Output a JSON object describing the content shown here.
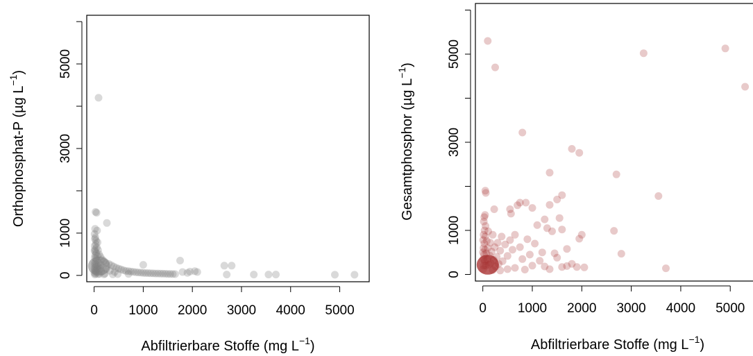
{
  "chart_data": [
    {
      "type": "scatter",
      "title": "",
      "xlabel": "Abfiltrierbare Stoffe (mg L",
      "xlabel_unit_exponent": "−1",
      "xlabel_close": ")",
      "ylabel": "Orthophosphat-P (µg L",
      "ylabel_unit_exponent": "−1",
      "ylabel_close": ")",
      "xlim": [
        -150,
        5600
      ],
      "ylim": [
        -150,
        6150
      ],
      "x_ticks": [
        0,
        1000,
        2000,
        3000,
        4000,
        5000
      ],
      "x_tick_labels": [
        "0",
        "1000",
        "2000",
        "3000",
        "4000",
        "5000"
      ],
      "y_ticks": [
        0,
        1000,
        3000,
        5000
      ],
      "y_tick_labels": [
        "0",
        "1000",
        "3000",
        "5000"
      ],
      "grid": false,
      "legend": "none",
      "point_color": "#808080",
      "point_opacity": 0.3,
      "series": [
        {
          "values": [
            [
              90,
              4200
            ],
            [
              30,
              1500
            ],
            [
              50,
              1480
            ],
            [
              20,
              1100
            ],
            [
              60,
              1060
            ],
            [
              260,
              1240
            ],
            [
              10,
              980
            ],
            [
              25,
              900
            ],
            [
              15,
              860
            ],
            [
              40,
              820
            ],
            [
              70,
              780
            ],
            [
              35,
              740
            ],
            [
              12,
              700
            ],
            [
              55,
              660
            ],
            [
              18,
              620
            ],
            [
              80,
              600
            ],
            [
              8,
              580
            ],
            [
              28,
              560
            ],
            [
              45,
              520
            ],
            [
              100,
              500
            ],
            [
              22,
              480
            ],
            [
              65,
              460
            ],
            [
              130,
              440
            ],
            [
              14,
              420
            ],
            [
              38,
              400
            ],
            [
              160,
              380
            ],
            [
              52,
              360
            ],
            [
              200,
              340
            ],
            [
              26,
              320
            ],
            [
              90,
              300
            ],
            [
              240,
              300
            ],
            [
              11,
              280
            ],
            [
              300,
              270
            ],
            [
              44,
              260
            ],
            [
              140,
              250
            ],
            [
              350,
              240
            ],
            [
              19,
              230
            ],
            [
              75,
              220
            ],
            [
              400,
              210
            ],
            [
              33,
              200
            ],
            [
              180,
              190
            ],
            [
              450,
              180
            ],
            [
              9,
              170
            ],
            [
              120,
              165
            ],
            [
              500,
              160
            ],
            [
              60,
              150
            ],
            [
              250,
              145
            ],
            [
              550,
              140
            ],
            [
              16,
              130
            ],
            [
              95,
              125
            ],
            [
              600,
              120
            ],
            [
              40,
              115
            ],
            [
              320,
              110
            ],
            [
              650,
              105
            ],
            [
              700,
              100
            ],
            [
              24,
              95
            ],
            [
              150,
              90
            ],
            [
              750,
              90
            ],
            [
              800,
              85
            ],
            [
              58,
              80
            ],
            [
              420,
              80
            ],
            [
              850,
              75
            ],
            [
              900,
              70
            ],
            [
              950,
              65
            ],
            [
              1000,
              60
            ],
            [
              1050,
              55
            ],
            [
              1100,
              55
            ],
            [
              1150,
              50
            ],
            [
              1200,
              48
            ],
            [
              1250,
              45
            ],
            [
              1300,
              45
            ],
            [
              1350,
              42
            ],
            [
              1400,
              40
            ],
            [
              1450,
              38
            ],
            [
              1500,
              36
            ],
            [
              1550,
              34
            ],
            [
              1600,
              32
            ],
            [
              1650,
              30
            ],
            [
              1000,
              250
            ],
            [
              1750,
              350
            ],
            [
              1800,
              80
            ],
            [
              1900,
              60
            ],
            [
              1950,
              90
            ],
            [
              2050,
              100
            ],
            [
              2100,
              80
            ],
            [
              2650,
              230
            ],
            [
              2800,
              230
            ],
            [
              2700,
              20
            ],
            [
              3250,
              20
            ],
            [
              3550,
              20
            ],
            [
              3700,
              20
            ],
            [
              4900,
              15
            ],
            [
              5300,
              15
            ],
            [
              30,
              40
            ],
            [
              80,
              30
            ],
            [
              200,
              25
            ],
            [
              5,
              60
            ],
            [
              15,
              20
            ],
            [
              110,
              35
            ],
            [
              220,
              40
            ],
            [
              380,
              25
            ],
            [
              480,
              30
            ],
            [
              700,
              35
            ]
          ]
        }
      ]
    },
    {
      "type": "scatter",
      "title": "",
      "xlabel": "Abfiltrierbare Stoffe (mg L",
      "xlabel_unit_exponent": "−1",
      "xlabel_close": ")",
      "ylabel": "Gesamtphosphor (µg L",
      "ylabel_unit_exponent": "−1",
      "ylabel_close": ")",
      "xlim": [
        -150,
        5600
      ],
      "ylim": [
        -150,
        6150
      ],
      "x_ticks": [
        0,
        1000,
        2000,
        3000,
        4000,
        5000
      ],
      "x_tick_labels": [
        "0",
        "1000",
        "2000",
        "3000",
        "4000",
        "5000"
      ],
      "y_ticks": [
        0,
        1000,
        3000,
        5000
      ],
      "y_tick_labels": [
        "0",
        "1000",
        "3000",
        "5000"
      ],
      "grid": false,
      "legend": "none",
      "point_color": "#a52a2a",
      "point_opacity": 0.25,
      "series": [
        {
          "values": [
            [
              100,
              5300
            ],
            [
              250,
              4700
            ],
            [
              3250,
              5020
            ],
            [
              4900,
              5130
            ],
            [
              5300,
              4260
            ],
            [
              800,
              3220
            ],
            [
              1800,
              2850
            ],
            [
              1950,
              2760
            ],
            [
              1350,
              2310
            ],
            [
              2700,
              2270
            ],
            [
              3550,
              1780
            ],
            [
              50,
              1900
            ],
            [
              60,
              1850
            ],
            [
              1600,
              1800
            ],
            [
              1500,
              1700
            ],
            [
              1350,
              1580
            ],
            [
              750,
              1630
            ],
            [
              870,
              1630
            ],
            [
              700,
              1570
            ],
            [
              1000,
              1510
            ],
            [
              230,
              1480
            ],
            [
              550,
              1480
            ],
            [
              570,
              1380
            ],
            [
              1550,
              1280
            ],
            [
              1100,
              1120
            ],
            [
              1600,
              1020
            ],
            [
              2650,
              990
            ],
            [
              1300,
              1050
            ],
            [
              1400,
              980
            ],
            [
              1950,
              810
            ],
            [
              2800,
              470
            ],
            [
              3700,
              140
            ],
            [
              1900,
              170
            ],
            [
              2050,
              160
            ],
            [
              1800,
              240
            ],
            [
              1700,
              190
            ],
            [
              1600,
              170
            ],
            [
              1450,
              480
            ],
            [
              1500,
              380
            ],
            [
              1200,
              500
            ],
            [
              1050,
              700
            ],
            [
              900,
              800
            ],
            [
              950,
              450
            ],
            [
              800,
              350
            ],
            [
              750,
              620
            ],
            [
              650,
              900
            ],
            [
              600,
              560
            ],
            [
              550,
              780
            ],
            [
              500,
              420
            ],
            [
              450,
              680
            ],
            [
              400,
              300
            ],
            [
              380,
              860
            ],
            [
              350,
              540
            ],
            [
              320,
              240
            ],
            [
              300,
              720
            ],
            [
              280,
              400
            ],
            [
              260,
              180
            ],
            [
              240,
              620
            ],
            [
              220,
              330
            ],
            [
              200,
              900
            ],
            [
              180,
              520
            ],
            [
              160,
              260
            ],
            [
              150,
              720
            ],
            [
              140,
              430
            ],
            [
              120,
              220
            ],
            [
              110,
              980
            ],
            [
              100,
              600
            ],
            [
              90,
              340
            ],
            [
              80,
              760
            ],
            [
              70,
              480
            ],
            [
              60,
              200
            ],
            [
              55,
              1100
            ],
            [
              50,
              860
            ],
            [
              45,
              560
            ],
            [
              40,
              300
            ],
            [
              35,
              1000
            ],
            [
              30,
              700
            ],
            [
              25,
              450
            ],
            [
              20,
              200
            ],
            [
              15,
              900
            ],
            [
              12,
              600
            ],
            [
              10,
              350
            ],
            [
              8,
              120
            ],
            [
              5,
              780
            ],
            [
              3,
              500
            ],
            [
              30,
              1300
            ],
            [
              20,
              1200
            ],
            [
              45,
              1350
            ],
            [
              200,
              100
            ],
            [
              350,
              90
            ],
            [
              500,
              120
            ],
            [
              650,
              150
            ],
            [
              850,
              110
            ],
            [
              1000,
              200
            ],
            [
              1250,
              180
            ],
            [
              1350,
              120
            ],
            [
              1150,
              310
            ],
            [
              1700,
              580
            ],
            [
              2000,
              900
            ],
            [
              1250,
              1250
            ]
          ]
        }
      ]
    }
  ]
}
